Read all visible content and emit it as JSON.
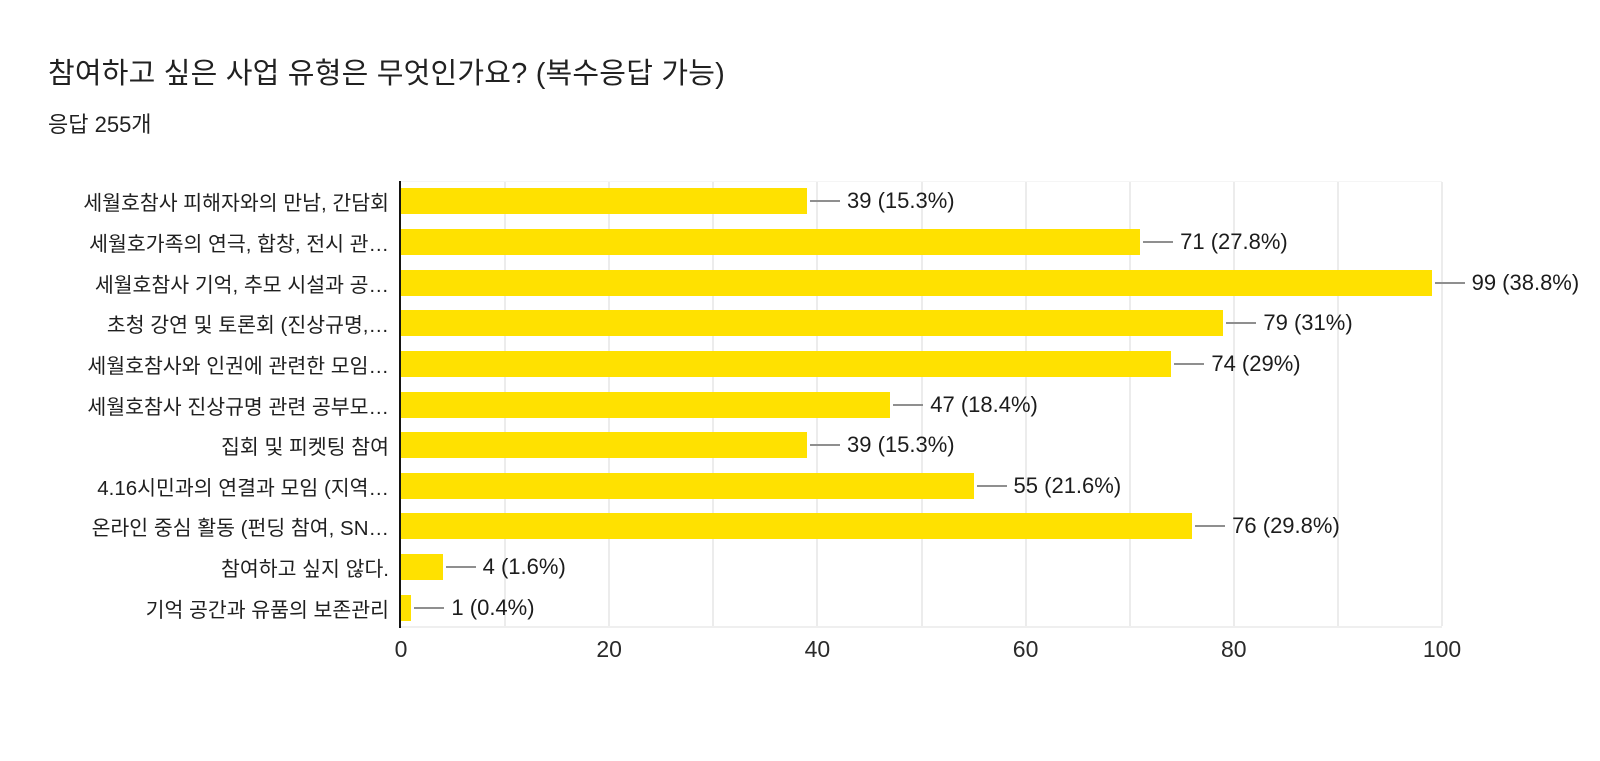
{
  "header": {
    "title": "참여하고 싶은 사업 유형은 무엇인가요? (복수응답 가능)",
    "subtitle": "응답 255개"
  },
  "chart_data": {
    "type": "bar",
    "orientation": "horizontal",
    "title": "참여하고 싶은 사업 유형은 무엇인가요? (복수응답 가능)",
    "subtitle": "응답 255개",
    "categories": [
      "세월호참사 피해자와의 만남, 간담회",
      "세월호가족의 연극, 합창, 전시 관…",
      "세월호참사 기억, 추모 시설과 공…",
      "초청 강연 및 토론회 (진상규명,…",
      "세월호참사와 인권에 관련한 모임…",
      "세월호참사 진상규명 관련 공부모…",
      "집회 및 피켓팅 참여",
      "4.16시민과의 연결과 모임 (지역…",
      "온라인 중심 활동 (펀딩 참여, SN…",
      "참여하고 싶지 않다.",
      "기억 공간과 유품의 보존관리"
    ],
    "values": [
      39,
      71,
      99,
      79,
      74,
      47,
      39,
      55,
      76,
      4,
      1
    ],
    "value_labels": [
      "39 (15.3%)",
      "71 (27.8%)",
      "99 (38.8%)",
      "79 (31%)",
      "74 (29%)",
      "47 (18.4%)",
      "39 (15.3%)",
      "55 (21.6%)",
      "76 (29.8%)",
      "4 (1.6%)",
      "1 (0.4%)"
    ],
    "x_ticks": [
      "0",
      "20",
      "40",
      "60",
      "80",
      "100"
    ],
    "x_tick_values": [
      0,
      20,
      40,
      60,
      80,
      100
    ],
    "xlim": [
      0,
      100
    ],
    "grid": true,
    "grid_minor_step": 10,
    "legend": "none",
    "colors": {
      "bar": "#FFE100",
      "gridline": "#ececec",
      "axis_line": "#141414",
      "leader_line": "#8f8f8f",
      "text": "#202124",
      "background": "#ffffff"
    }
  }
}
